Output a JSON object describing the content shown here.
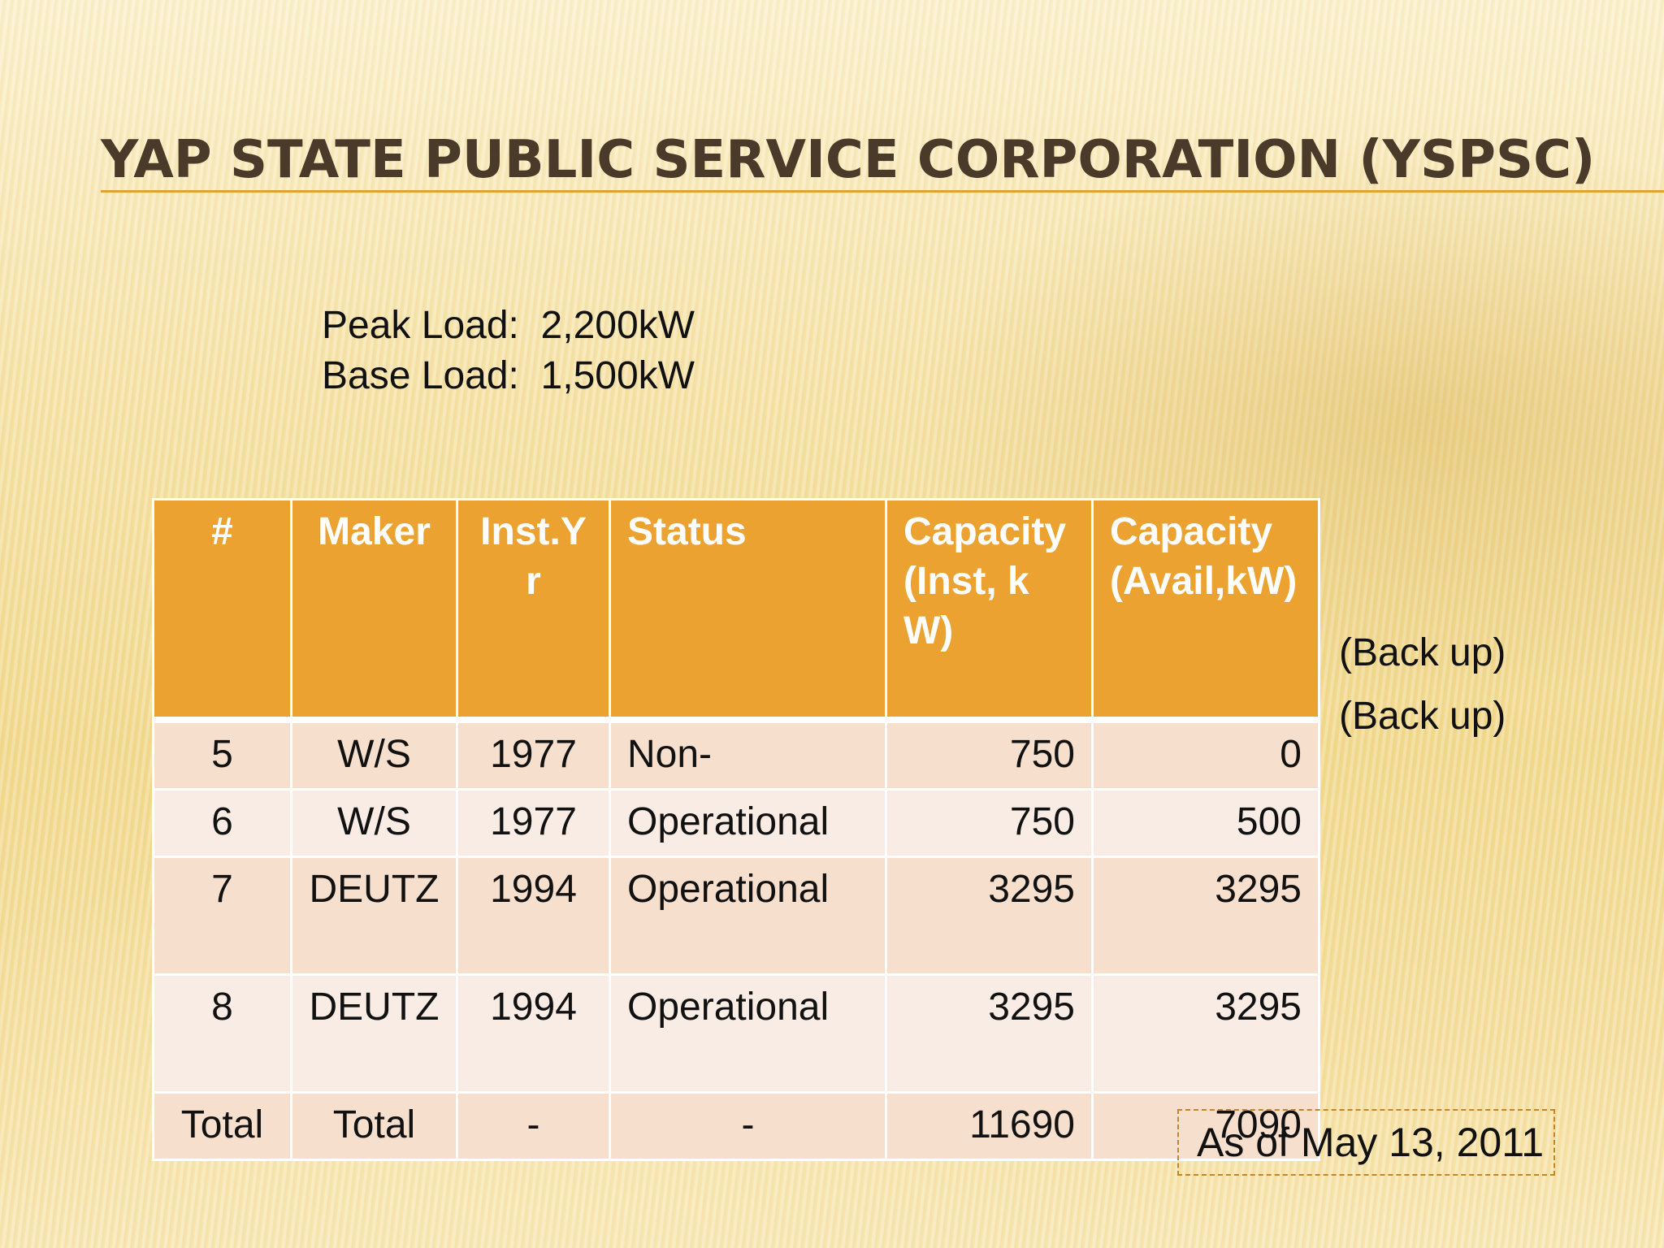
{
  "slide": {
    "title": "YAP STATE PUBLIC SERVICE CORPORATION (YSPSC)",
    "peak_load": "Peak Load:  2,200kW",
    "base_load": "Base Load:  1,500kW",
    "as_of": "As of May 13, 2011",
    "backup_notes": [
      "(Back up)",
      "(Back up)"
    ]
  },
  "table": {
    "headers": [
      "#",
      "Maker",
      "Inst.Yr",
      "Status",
      "Capacity (Inst, kW)",
      "Capacity (Avail,kW)"
    ],
    "rows": [
      [
        "5",
        "W/S",
        "1977",
        "Non-",
        "750",
        "0"
      ],
      [
        "6",
        "W/S",
        "1977",
        "Operational",
        "750",
        "500"
      ],
      [
        "7",
        "DEUTZ",
        "1994",
        "Operational",
        "3295",
        "3295"
      ],
      [
        "8",
        "DEUTZ",
        "1994",
        "Operational",
        "3295",
        "3295"
      ],
      [
        "Total",
        "Total",
        "-",
        "-",
        "11690",
        "7090"
      ]
    ]
  },
  "colors": {
    "header_bg": "#eba231",
    "row_odd": "#f6dfcd",
    "row_even": "#f8ece4",
    "title_text": "#4a3a2a",
    "title_rule": "#e2a133"
  }
}
